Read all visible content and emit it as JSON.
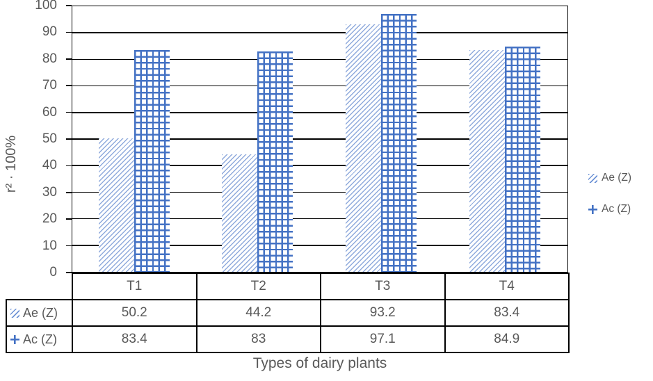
{
  "chart_data": {
    "type": "bar",
    "title": "",
    "xlabel": "Types of dairy plants",
    "ylabel": "r² · 100%",
    "categories": [
      "T1",
      "T2",
      "T3",
      "T4"
    ],
    "series": [
      {
        "name": "Ae (Z)",
        "pattern": "diagonal-hatch",
        "values": [
          50.2,
          44.2,
          93.2,
          83.4
        ]
      },
      {
        "name": "Ac (Z)",
        "pattern": "cross-hatch",
        "values": [
          83.4,
          83,
          97.1,
          84.9
        ]
      }
    ],
    "ylim": [
      0,
      100
    ],
    "yticks": [
      0,
      10,
      20,
      30,
      40,
      50,
      60,
      70,
      80,
      90,
      100
    ],
    "grid": true,
    "legend_position": "right",
    "data_table_shown": true,
    "colors": {
      "bar_blue": "#4472C4",
      "hatch_light_blue": "#8FAADC",
      "text_gray": "#595959",
      "line_black": "#000000",
      "background": "#FFFFFF"
    }
  }
}
